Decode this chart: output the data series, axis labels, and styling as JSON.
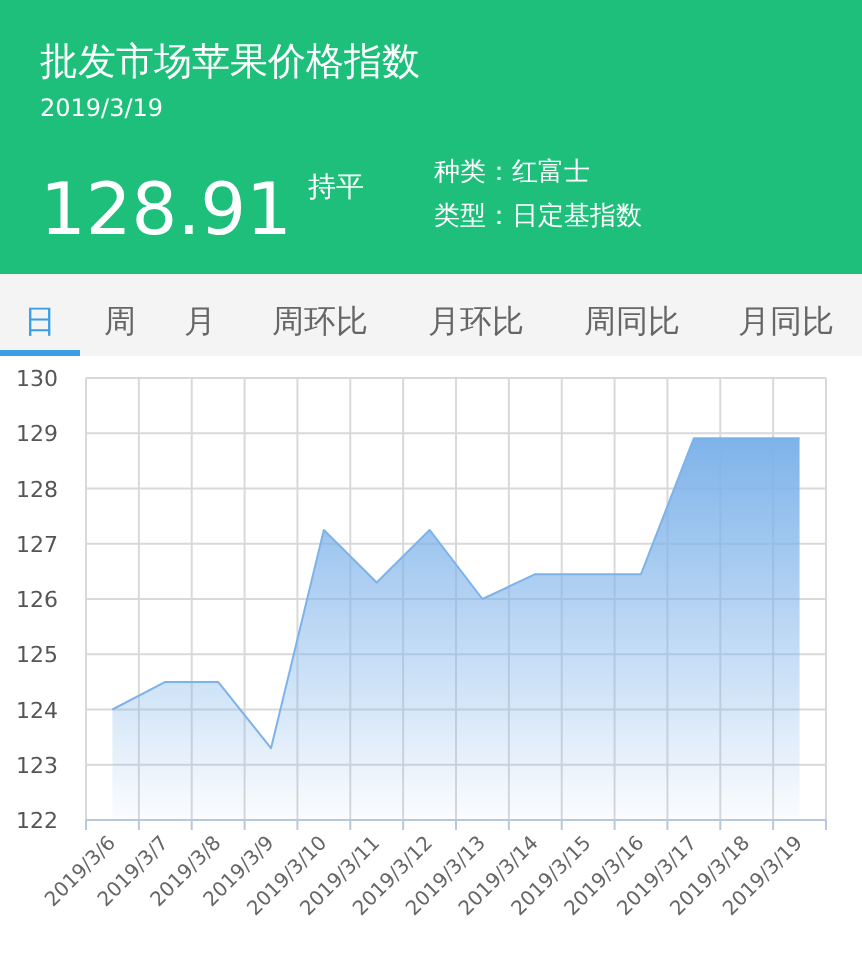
{
  "chart_data": {
    "type": "area",
    "title": "批发市场苹果价格指数",
    "subtitle": "2019/3/19",
    "annotations": [
      "128.91",
      "持平",
      "种类：红富士",
      "类型：日定基指数",
      "日",
      "周",
      "月",
      "周环比",
      "月环比",
      "周同比",
      "月同比"
    ],
    "categories": [
      "2019/3/6",
      "2019/3/7",
      "2019/3/8",
      "2019/3/9",
      "2019/3/10",
      "2019/3/11",
      "2019/3/12",
      "2019/3/13",
      "2019/3/14",
      "2019/3/15",
      "2019/3/16",
      "2019/3/17",
      "2019/3/18",
      "2019/3/19"
    ],
    "series": [
      {
        "color": "#7eb3ea",
        "values": [
          124.0,
          124.5,
          124.5,
          123.3,
          127.25,
          126.3,
          127.25,
          126.0,
          126.45,
          126.45,
          126.45,
          128.91,
          128.91,
          128.91
        ]
      }
    ],
    "ylim": [
      122,
      130
    ],
    "yticks": [
      122,
      123,
      124,
      125,
      126,
      127,
      128,
      129,
      130
    ],
    "grid": true
  }
}
